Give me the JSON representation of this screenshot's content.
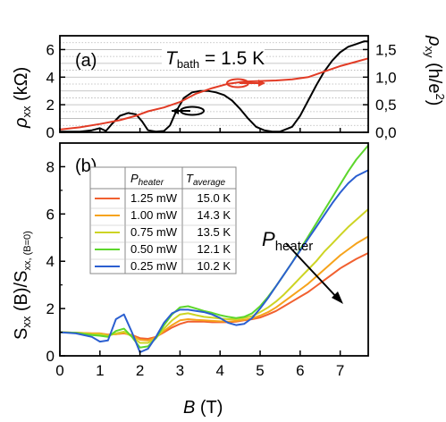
{
  "chart_data": [
    {
      "type": "line",
      "panel_label": "(a)",
      "annotation_main": "T",
      "annotation_sub": "bath",
      "annotation_rest": " = 1.5 K",
      "xlim": [
        0,
        7.7
      ],
      "left_axis": {
        "label_main": "ρ",
        "label_sub": "xx",
        "label_unit": " (kΩ)",
        "ylim": [
          0,
          7
        ],
        "ticks": [
          0,
          2,
          4,
          6
        ]
      },
      "right_axis": {
        "label_main": "ρ",
        "label_sub": "xy",
        "label_unit": " (h/e",
        "label_sup": "2",
        "label_close": ")",
        "ylim": [
          0,
          1.75
        ],
        "ticks": [
          "0,0",
          "0,5",
          "1,0",
          "1,5"
        ]
      },
      "grid": "dotted horizontal",
      "series": [
        {
          "axis": "left",
          "color": "#000000",
          "x": [
            0,
            0.5,
            0.8,
            1.0,
            1.15,
            1.3,
            1.5,
            1.7,
            1.9,
            2.05,
            2.2,
            2.4,
            2.6,
            2.75,
            2.9,
            3.1,
            3.3,
            3.5,
            3.7,
            3.9,
            4.1,
            4.3,
            4.5,
            4.7,
            4.9,
            5.1,
            5.3,
            5.5,
            5.8,
            6.0,
            6.2,
            6.4,
            6.6,
            6.8,
            7.0,
            7.2,
            7.4,
            7.6,
            7.7
          ],
          "y": [
            0.05,
            0.05,
            0.15,
            0.3,
            0.1,
            0.6,
            1.2,
            1.4,
            1.3,
            0.8,
            0.15,
            0.05,
            0.1,
            0.5,
            1.5,
            2.5,
            2.9,
            3.0,
            3.0,
            2.9,
            2.7,
            2.3,
            1.7,
            1.0,
            0.4,
            0.15,
            0.05,
            0.05,
            0.4,
            1.2,
            2.3,
            3.4,
            4.4,
            5.2,
            5.8,
            6.2,
            6.4,
            6.6,
            6.6
          ]
        },
        {
          "axis": "right",
          "color": "#e23b25",
          "x": [
            0,
            0.5,
            1.0,
            1.5,
            1.9,
            2.2,
            2.6,
            3.0,
            3.4,
            3.8,
            4.2,
            4.6,
            5.0,
            5.4,
            5.8,
            6.2,
            6.6,
            7.0,
            7.4,
            7.7
          ],
          "y": [
            0.05,
            0.09,
            0.15,
            0.22,
            0.3,
            0.38,
            0.45,
            0.55,
            0.7,
            0.8,
            0.88,
            0.92,
            0.93,
            0.94,
            0.96,
            1.0,
            1.1,
            1.2,
            1.28,
            1.34
          ]
        }
      ]
    },
    {
      "type": "line",
      "panel_label": "(b)",
      "xlabel_main": "B",
      "xlabel_unit": " (T)",
      "ylabel": "S",
      "ylabel_sub1": "xx",
      "ylabel_mid": " (B)/S",
      "ylabel_sub2": "xx, (B=0)",
      "xlim": [
        0,
        7.7
      ],
      "ylim": [
        0,
        9
      ],
      "xticks": [
        0,
        1,
        2,
        3,
        4,
        5,
        6,
        7
      ],
      "yticks": [
        0,
        2,
        4,
        6,
        8
      ],
      "legend": {
        "placement": "upper-left",
        "header_col1": "P",
        "header_col1_sub": "heater",
        "header_col2": "T",
        "header_col2_sub": "average",
        "rows": [
          {
            "power": "1.25 mW",
            "temp": "15.0 K"
          },
          {
            "power": "1.00 mW",
            "temp": "14.3 K"
          },
          {
            "power": "0.75 mW",
            "temp": "13.5 K"
          },
          {
            "power": "0.50 mW",
            "temp": "12.1 K"
          },
          {
            "power": "0.25 mW",
            "temp": "10.2 K"
          }
        ]
      },
      "arrow_label_main": "P",
      "arrow_label_sub": "heater",
      "x": [
        0,
        0.4,
        0.8,
        1.0,
        1.2,
        1.4,
        1.6,
        1.8,
        2.0,
        2.2,
        2.4,
        2.6,
        2.8,
        3.0,
        3.2,
        3.4,
        3.6,
        3.8,
        4.0,
        4.2,
        4.4,
        4.6,
        4.8,
        5.0,
        5.2,
        5.4,
        5.6,
        5.8,
        6.0,
        6.2,
        6.4,
        6.6,
        6.8,
        7.0,
        7.2,
        7.4,
        7.7
      ],
      "series": [
        {
          "name": "1.25 mW",
          "color": "#f1602f",
          "y": [
            1.0,
            0.98,
            0.95,
            0.95,
            0.9,
            0.92,
            0.95,
            0.88,
            0.75,
            0.72,
            0.8,
            1.0,
            1.2,
            1.35,
            1.45,
            1.45,
            1.45,
            1.42,
            1.42,
            1.42,
            1.45,
            1.5,
            1.55,
            1.62,
            1.75,
            1.9,
            2.1,
            2.3,
            2.5,
            2.7,
            2.95,
            3.2,
            3.45,
            3.7,
            3.9,
            4.1,
            4.35
          ]
        },
        {
          "name": "1.00 mW",
          "color": "#f6a31b",
          "y": [
            1.0,
            0.98,
            0.95,
            0.95,
            0.88,
            0.92,
            0.97,
            0.85,
            0.68,
            0.65,
            0.78,
            1.05,
            1.3,
            1.5,
            1.55,
            1.52,
            1.5,
            1.48,
            1.46,
            1.45,
            1.48,
            1.52,
            1.58,
            1.7,
            1.85,
            2.05,
            2.3,
            2.55,
            2.8,
            3.05,
            3.35,
            3.65,
            3.95,
            4.25,
            4.5,
            4.75,
            5.05
          ]
        },
        {
          "name": "0.75 mW",
          "color": "#cdd424",
          "y": [
            1.0,
            0.98,
            0.92,
            0.92,
            0.85,
            0.95,
            1.02,
            0.82,
            0.55,
            0.55,
            0.75,
            1.15,
            1.5,
            1.75,
            1.8,
            1.72,
            1.65,
            1.62,
            1.58,
            1.55,
            1.55,
            1.6,
            1.68,
            1.85,
            2.05,
            2.3,
            2.6,
            2.95,
            3.3,
            3.65,
            4.0,
            4.4,
            4.75,
            5.1,
            5.45,
            5.75,
            6.2
          ]
        },
        {
          "name": "0.50 mW",
          "color": "#5dd62c",
          "y": [
            1.0,
            0.97,
            0.88,
            0.85,
            0.8,
            1.05,
            1.15,
            0.8,
            0.35,
            0.4,
            0.75,
            1.3,
            1.75,
            2.05,
            2.1,
            2.0,
            1.9,
            1.82,
            1.72,
            1.65,
            1.6,
            1.65,
            1.8,
            2.1,
            2.5,
            2.95,
            3.45,
            3.95,
            4.5,
            5.05,
            5.6,
            6.15,
            6.7,
            7.25,
            7.8,
            8.3,
            8.9
          ]
        },
        {
          "name": "0.25 mW",
          "color": "#2b5fd0",
          "y": [
            1.0,
            0.95,
            0.8,
            0.6,
            0.65,
            1.55,
            1.75,
            1.0,
            0.15,
            0.3,
            0.8,
            1.4,
            1.8,
            1.95,
            1.95,
            1.9,
            1.85,
            1.75,
            1.6,
            1.4,
            1.3,
            1.35,
            1.6,
            2.0,
            2.45,
            2.95,
            3.45,
            3.95,
            4.45,
            4.95,
            5.45,
            5.95,
            6.45,
            6.9,
            7.3,
            7.6,
            7.85
          ]
        }
      ]
    }
  ]
}
